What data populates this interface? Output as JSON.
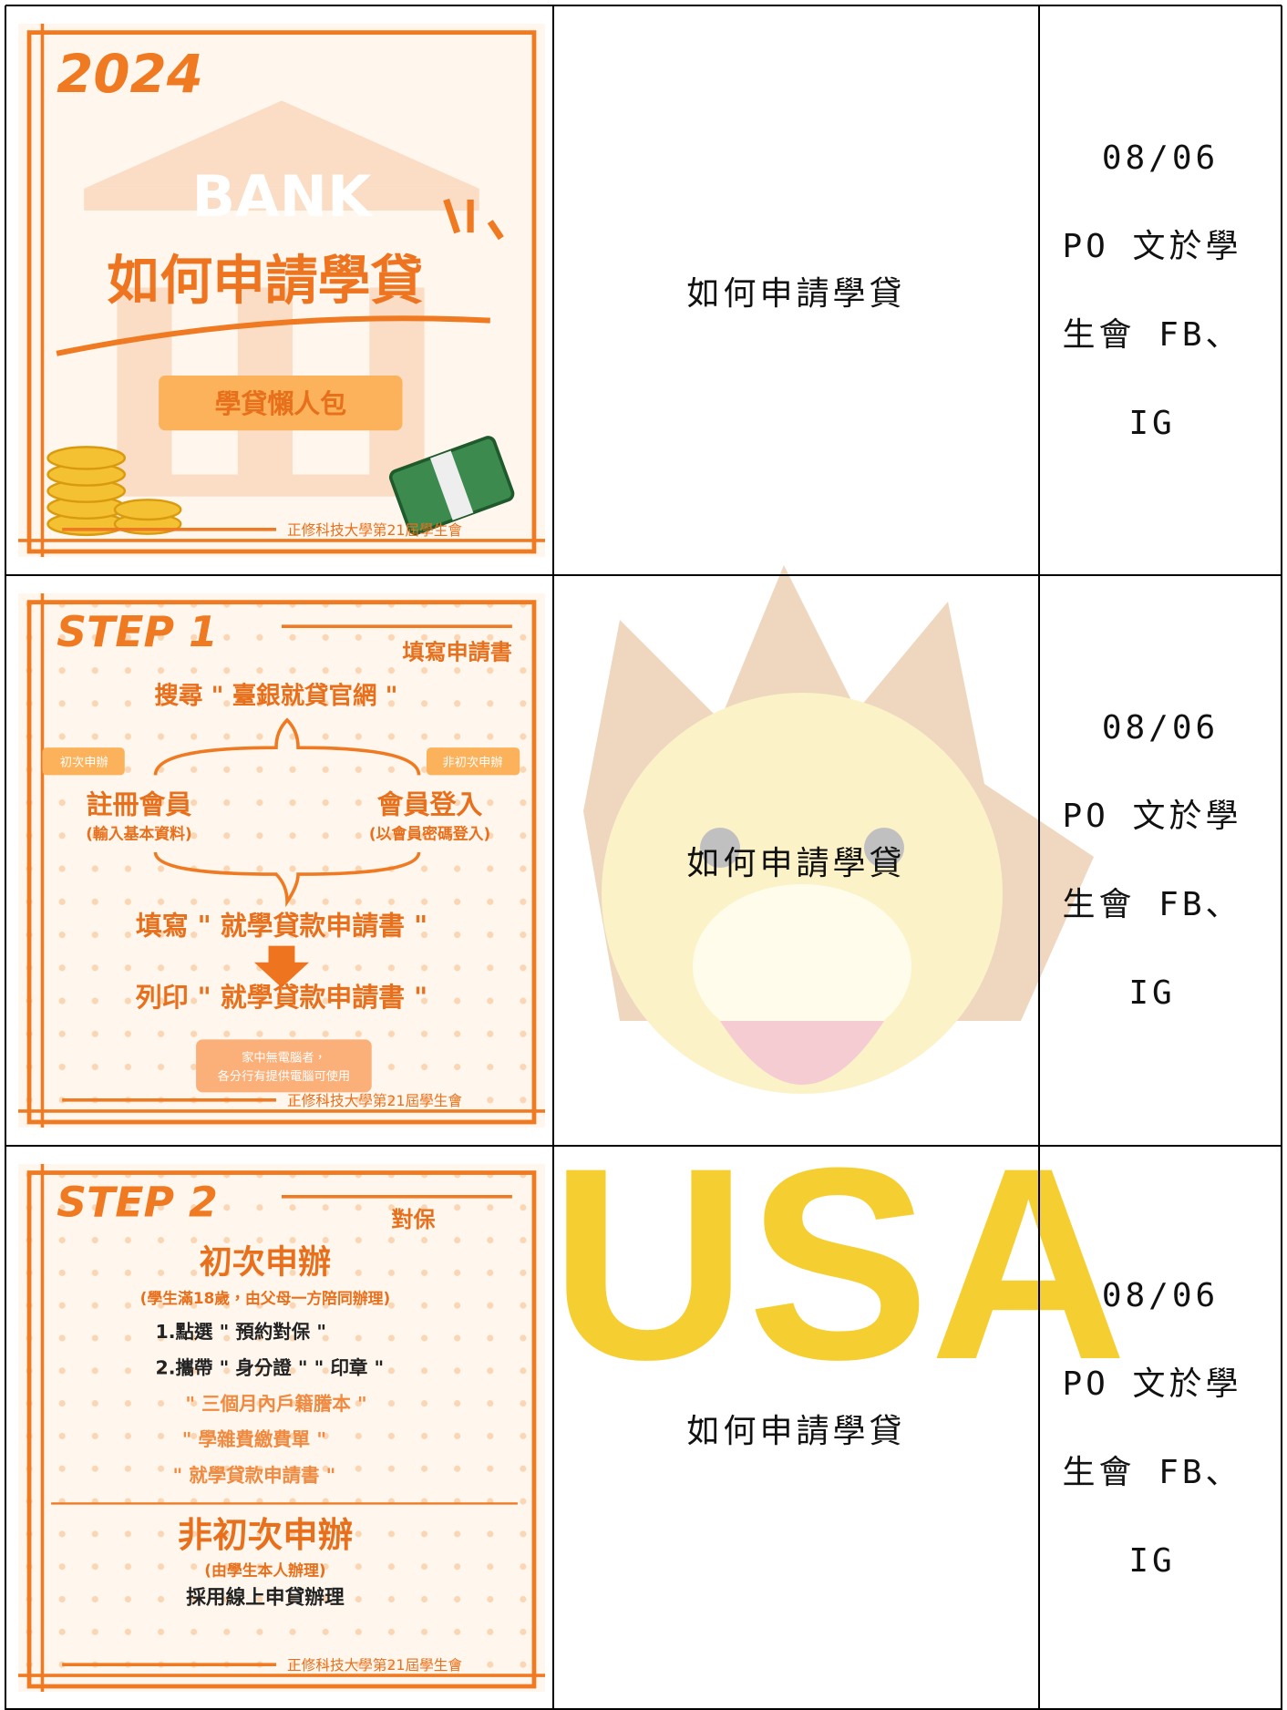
{
  "watermark": "USA",
  "table": {
    "rows": [
      {
        "poster": {
          "year": "2024",
          "bank": "BANK",
          "title": "如何申請學貸",
          "badge": "學貸懶人包",
          "footer": "正修科技大學第21屆學生會"
        },
        "title": "如何申請學貸",
        "date": "08/06",
        "note": "PO 文於學生會 FB、IG"
      },
      {
        "poster": {
          "step": "STEP 1",
          "heading": "填寫申請書",
          "search": "搜尋 \" 臺銀就貸官網 \"",
          "left_tag": "初次申辦",
          "right_tag": "非初次申辦",
          "left": "註冊會員",
          "left_sub": "(輸入基本資料)",
          "right": "會員登入",
          "right_sub": "(以會員密碼登入)",
          "fill": "填寫 \" 就學貸款申請書 \"",
          "print": "列印 \" 就學貸款申請書 \"",
          "note_line1": "家中無電腦者，",
          "note_line2": "各分行有提供電腦可使用",
          "footer": "正修科技大學第21屆學生會"
        },
        "title": "如何申請學貸",
        "date": "08/06",
        "note": "PO 文於學生會 FB、IG"
      },
      {
        "poster": {
          "step": "STEP 2",
          "heading": "對保",
          "first": "初次申辦",
          "first_sub": "(學生滿18歲，由父母一方陪同辦理)",
          "item1": "1.點選 \" 預約對保 \"",
          "item2": "2.攜帶 \" 身分證 \" \" 印章 \"",
          "item3": "\" 三個月內戶籍謄本 \"",
          "item4": "\" 學雜費繳費單 \"",
          "item5": "\" 就學貸款申請書 \"",
          "repeat": "非初次申辦",
          "repeat_sub": "(由學生本人辦理)",
          "repeat_method": "採用線上申貸辦理",
          "footer": "正修科技大學第21屆學生會"
        },
        "title": "如何申請學貸",
        "date": "08/06",
        "note": "PO 文於學生會 FB、IG"
      }
    ]
  }
}
